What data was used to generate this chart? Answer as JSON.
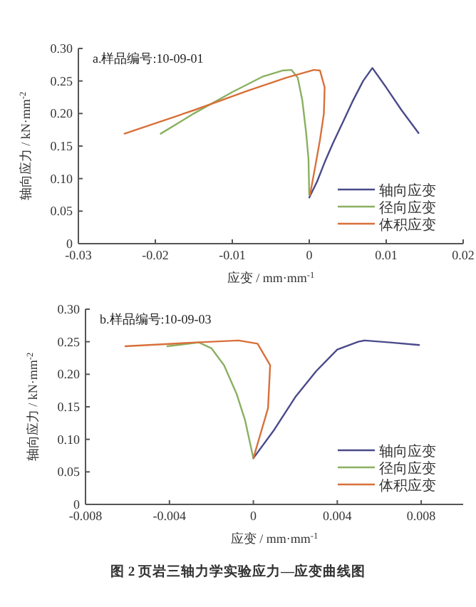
{
  "chart_data": [
    {
      "type": "line",
      "title": "a.样品编号:10-09-01",
      "xlabel": "应变 / mm·mm$^{-1}$",
      "ylabel": "轴向应力 / kN·mm$^{-2}$",
      "xlim": [
        -0.03,
        0.02
      ],
      "xticks": [
        -0.03,
        -0.02,
        -0.01,
        0,
        0.01,
        0.02
      ],
      "ylim": [
        0,
        0.3
      ],
      "yticks": [
        0,
        0.05,
        {
          "value": 0.1,
          "label": "0.10"
        },
        0.15,
        {
          "value": 0.2,
          "label": "0.20"
        },
        0.25,
        {
          "value": 0.3,
          "label": "0.30"
        }
      ],
      "legend": "bottom right",
      "series": [
        {
          "name": "轴向应变",
          "color": "#4a4a8a",
          "x": [
            0,
            0.001,
            0.002,
            0.0031,
            0.0045,
            0.0056,
            0.007,
            0.0082,
            0.01,
            0.012,
            0.0142
          ],
          "values": [
            0.071,
            0.095,
            0.125,
            0.155,
            0.19,
            0.218,
            0.25,
            0.27,
            0.24,
            0.205,
            0.17
          ]
        },
        {
          "name": "径向应变",
          "color": "#8ab060",
          "x": [
            -0.0193,
            -0.015,
            -0.01,
            -0.006,
            -0.0035,
            -0.0023,
            -0.0015,
            -0.0009,
            -0.0004,
            -0.0001,
            0
          ],
          "values": [
            0.169,
            0.2,
            0.233,
            0.257,
            0.266,
            0.267,
            0.255,
            0.22,
            0.17,
            0.13,
            0.075
          ]
        },
        {
          "name": "体积应变",
          "color": "#d8703a",
          "x": [
            -0.024,
            -0.015,
            -0.008,
            -0.003,
            0.0006,
            0.0014,
            0.002,
            0.0019,
            0.0014,
            0.0008,
            0.0001
          ],
          "values": [
            0.169,
            0.205,
            0.235,
            0.255,
            0.267,
            0.266,
            0.24,
            0.2,
            0.16,
            0.12,
            0.075
          ]
        }
      ]
    },
    {
      "type": "line",
      "title": "b.样品编号:10-09-03",
      "xlabel": "应变 / mm·mm$^{-1}$",
      "ylabel": "轴向应力 / kN·mm$^{-2}$",
      "xlim": [
        -0.008,
        0.01
      ],
      "xticks": [
        -0.008,
        -0.004,
        0,
        0.004,
        0.008
      ],
      "ylim": [
        0,
        0.3
      ],
      "yticks": [
        0,
        0.05,
        {
          "value": 0.1,
          "label": "0.10"
        },
        0.15,
        {
          "value": 0.2,
          "label": "0.20"
        },
        0.25,
        {
          "value": 0.3,
          "label": "0.30"
        }
      ],
      "legend": "bottom right",
      "annotations": [
        "图 2  页岩三轴力学实验应力—应变曲线图"
      ],
      "series": [
        {
          "name": "轴向应变",
          "color": "#4a4a8a",
          "x": [
            0,
            0.001,
            0.002,
            0.003,
            0.004,
            0.005,
            0.0053,
            0.0065,
            0.0079
          ],
          "values": [
            0.071,
            0.115,
            0.165,
            0.205,
            0.238,
            0.25,
            0.252,
            0.249,
            0.245
          ]
        },
        {
          "name": "径向应变",
          "color": "#8ab060",
          "x": [
            -0.0041,
            -0.0026,
            -0.002,
            -0.0014,
            -0.0008,
            -0.0004,
            0
          ],
          "values": [
            0.243,
            0.249,
            0.24,
            0.214,
            0.17,
            0.13,
            0.071
          ]
        },
        {
          "name": "体积应变",
          "color": "#d8703a",
          "x": [
            -0.0061,
            -0.0027,
            -0.0007,
            0.0002,
            0.0008,
            0.0007,
            0.0003,
            0
          ],
          "values": [
            0.243,
            0.249,
            0.252,
            0.247,
            0.214,
            0.148,
            0.104,
            0.071
          ]
        }
      ]
    }
  ]
}
